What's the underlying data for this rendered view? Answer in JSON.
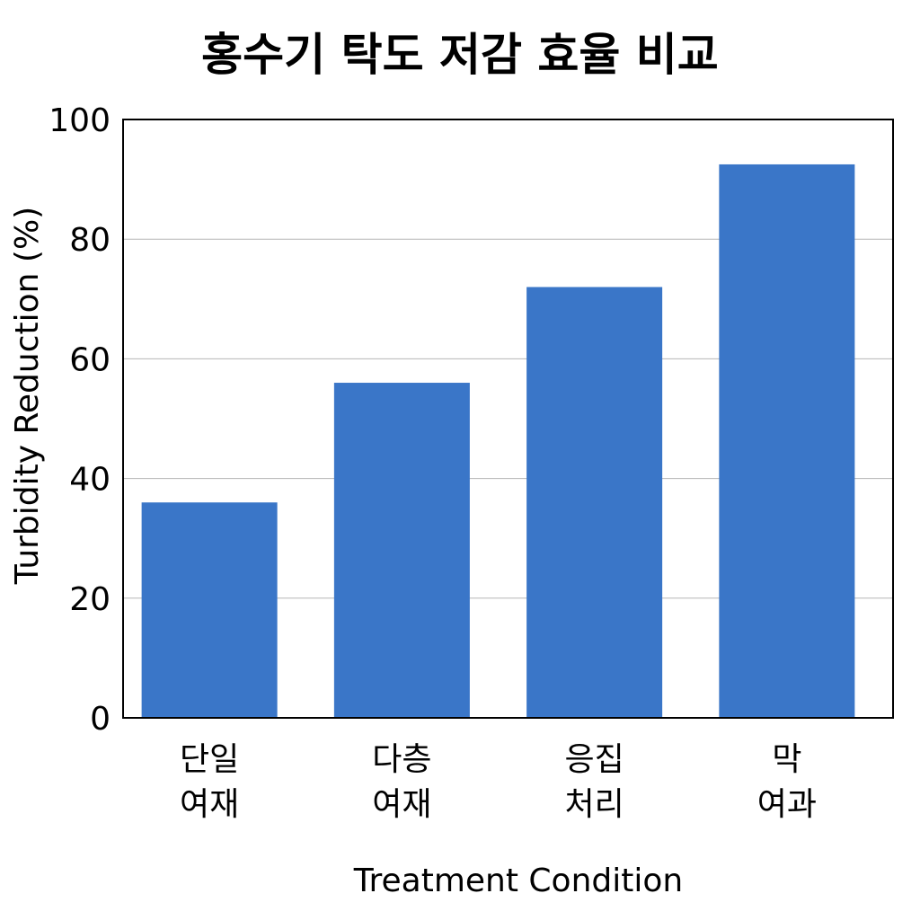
{
  "chart_data": {
    "type": "bar",
    "title": "홍수기 탁도 저감 효율 비교",
    "xlabel": "Treatment Condition",
    "ylabel": "Turbidity Reduction (%)",
    "categories": [
      [
        "단일",
        "여재"
      ],
      [
        "다층",
        "여재"
      ],
      [
        "응집",
        "처리"
      ],
      [
        "막",
        "여과"
      ]
    ],
    "values": [
      36,
      56,
      72,
      92.5
    ],
    "ylim": [
      0,
      100
    ],
    "yticks": [
      0,
      20,
      40,
      60,
      80,
      100
    ],
    "grid": true,
    "legend": "none",
    "colors": {
      "bar": "#3a76c8",
      "grid": "#b5b5b5",
      "frame": "#000000"
    }
  }
}
